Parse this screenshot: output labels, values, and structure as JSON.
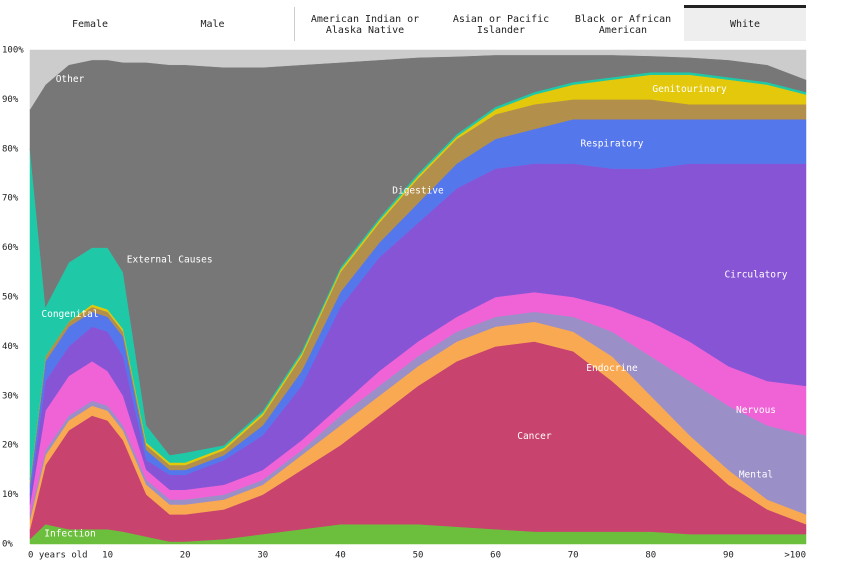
{
  "filters": {
    "sex": [
      "Female",
      "Male"
    ],
    "race": [
      "American Indian or Alaska Native",
      "Asian or Pacific Islander",
      "Black or African American",
      "White"
    ],
    "selected": "White"
  },
  "chart_data": {
    "type": "stacked-area",
    "x": [
      0,
      2,
      5,
      8,
      10,
      12,
      15,
      18,
      20,
      25,
      30,
      35,
      40,
      45,
      50,
      55,
      60,
      65,
      70,
      75,
      80,
      85,
      90,
      95,
      100
    ],
    "xlim": [
      0,
      100
    ],
    "xticks": [
      {
        "value": 0,
        "label": "0 years old"
      },
      10,
      20,
      30,
      40,
      50,
      60,
      70,
      80,
      90,
      {
        "value": 100,
        "label": ">100"
      }
    ],
    "ylim": [
      0,
      100
    ],
    "yticks": [
      {
        "value": 0,
        "label": "0%"
      },
      {
        "value": 10,
        "label": "10%"
      },
      {
        "value": 20,
        "label": "20%"
      },
      {
        "value": 30,
        "label": "30%"
      },
      {
        "value": 40,
        "label": "40%"
      },
      {
        "value": 50,
        "label": "50%"
      },
      {
        "value": 60,
        "label": "60%"
      },
      {
        "value": 70,
        "label": "70%"
      },
      {
        "value": 80,
        "label": "80%"
      },
      {
        "value": 90,
        "label": "90%"
      },
      {
        "value": 100,
        "label": "100%"
      }
    ],
    "series": [
      {
        "name": "Infection",
        "color": "#6cbf3c",
        "values": [
          1,
          4,
          3,
          3,
          3,
          2.5,
          1.5,
          0.5,
          0.5,
          1,
          2,
          3,
          4,
          4,
          4,
          3.5,
          3,
          2.5,
          2.5,
          2.5,
          2.5,
          2,
          2,
          2,
          2
        ]
      },
      {
        "name": "Cancer",
        "color": "#c8436e",
        "values": [
          2,
          12,
          20,
          23,
          22,
          18.5,
          8.5,
          5.5,
          5.5,
          6,
          8,
          12,
          16,
          22,
          28,
          33.5,
          37,
          38.5,
          36.5,
          30.5,
          23.5,
          17,
          10,
          5,
          2
        ]
      },
      {
        "name": "Endocrine",
        "color": "#f8a952",
        "values": [
          2,
          2,
          2,
          2,
          2,
          2,
          2,
          2,
          2,
          2,
          2,
          3,
          4,
          4,
          4,
          4,
          4,
          4,
          4,
          5,
          4,
          3,
          3,
          2,
          2
        ]
      },
      {
        "name": "Mental",
        "color": "#9a8fc6",
        "values": [
          1,
          1,
          1,
          1,
          1,
          1,
          1,
          1,
          1,
          1,
          1,
          1,
          2,
          2,
          2,
          2,
          2,
          2,
          3,
          5,
          8,
          11,
          13,
          15,
          16
        ]
      },
      {
        "name": "Nervous",
        "color": "#f063d6",
        "values": [
          2,
          8,
          8,
          8,
          7,
          6,
          2,
          2,
          2,
          2,
          2,
          2,
          2,
          3,
          3,
          3,
          4,
          4,
          4,
          5,
          7,
          8,
          8,
          9,
          10
        ]
      },
      {
        "name": "Circulatory",
        "color": "#8854d6",
        "values": [
          2,
          6,
          6,
          7,
          8,
          8,
          2,
          3,
          3,
          5,
          7,
          11,
          20,
          23,
          24,
          26,
          26,
          26,
          27,
          28,
          31,
          36,
          41,
          44,
          45
        ]
      },
      {
        "name": "Respiratory",
        "color": "#5577ec",
        "values": [
          2,
          4,
          4,
          3,
          3,
          4,
          2,
          1,
          1,
          1,
          2,
          3,
          3,
          3,
          4,
          5,
          6,
          7,
          9,
          10,
          10,
          9,
          9,
          9,
          9
        ]
      },
      {
        "name": "Digestive",
        "color": "#b38f4c",
        "values": [
          1,
          1,
          1,
          1,
          1,
          1,
          1,
          1,
          1,
          1,
          2,
          3,
          4,
          4,
          5,
          5,
          5,
          5,
          4,
          4,
          4,
          3,
          3,
          3,
          3
        ]
      },
      {
        "name": "Genitourinary",
        "color": "#e3c80b",
        "values": [
          0,
          0,
          0,
          0.5,
          0.5,
          0.5,
          0.5,
          0.5,
          0.5,
          0.5,
          0.5,
          0.5,
          0.5,
          0.5,
          0.5,
          0.5,
          1,
          2,
          3,
          4,
          5,
          6,
          5,
          4,
          2
        ]
      },
      {
        "name": "Congenital",
        "color": "#1fc9a8",
        "values": [
          67,
          10,
          12,
          11.5,
          12.5,
          11.5,
          3.5,
          1.5,
          2,
          0.5,
          0.5,
          0.5,
          0.5,
          0.5,
          0.5,
          0.5,
          0.5,
          0.5,
          0.5,
          0.5,
          0.5,
          0.5,
          0.5,
          0.5,
          0.5
        ]
      },
      {
        "name": "External Causes",
        "color": "#777777",
        "values": [
          8,
          45,
          40,
          38,
          38,
          42.5,
          73.5,
          79,
          78.5,
          76.5,
          69.5,
          58,
          41.5,
          32,
          23.5,
          15.7,
          10.5,
          7.5,
          5.5,
          4.5,
          3.3,
          3,
          3.5,
          3.5,
          2.5
        ]
      },
      {
        "name": "Other",
        "color": "#cccccc",
        "values": [
          12,
          7,
          3,
          2,
          2,
          2.5,
          2.5,
          3,
          3,
          3.5,
          3.5,
          3,
          2.5,
          2,
          1.5,
          1.3,
          1,
          1,
          1,
          1,
          1.2,
          1.5,
          2,
          3,
          6
        ]
      }
    ]
  }
}
